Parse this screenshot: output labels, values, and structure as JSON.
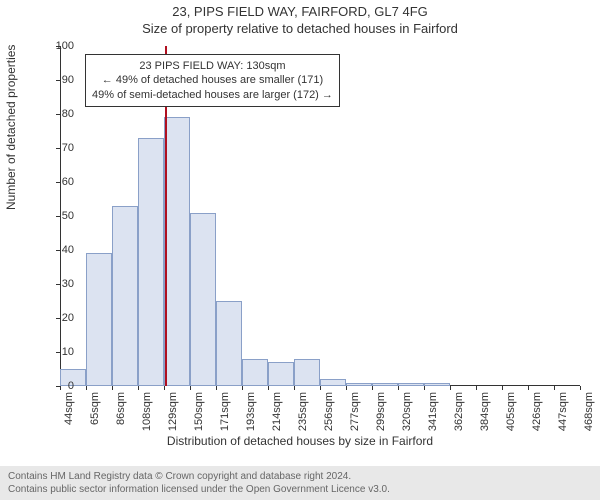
{
  "title_line1": "23, PIPS FIELD WAY, FAIRFORD, GL7 4FG",
  "title_line2": "Size of property relative to detached houses in Fairford",
  "y_axis_label": "Number of detached properties",
  "x_axis_label": "Distribution of detached houses by size in Fairford",
  "chart": {
    "type": "histogram",
    "ylim": [
      0,
      100
    ],
    "ytick_step": 10,
    "bar_fill": "#dce3f1",
    "bar_stroke": "#8aa0c8",
    "background": "#ffffff",
    "axis_color": "#333333",
    "x_ticks": [
      "44sqm",
      "65sqm",
      "86sqm",
      "108sqm",
      "129sqm",
      "150sqm",
      "171sqm",
      "193sqm",
      "214sqm",
      "235sqm",
      "256sqm",
      "277sqm",
      "299sqm",
      "320sqm",
      "341sqm",
      "362sqm",
      "384sqm",
      "405sqm",
      "426sqm",
      "447sqm",
      "468sqm"
    ],
    "bar_values": [
      5,
      39,
      53,
      73,
      79,
      51,
      25,
      8,
      7,
      8,
      2,
      1,
      1,
      1,
      1,
      0,
      0,
      0,
      0,
      0
    ],
    "marker": {
      "x_value": 130,
      "x_min": 44,
      "x_max": 468,
      "color": "#b01020",
      "box_lines": [
        "23 PIPS FIELD WAY: 130sqm",
        "← 49% of detached houses are smaller (171)",
        "49% of semi-detached houses are larger (172) →"
      ]
    }
  },
  "footer_line1": "Contains HM Land Registry data © Crown copyright and database right 2024.",
  "footer_line2": "Contains public sector information licensed under the Open Government Licence v3.0."
}
